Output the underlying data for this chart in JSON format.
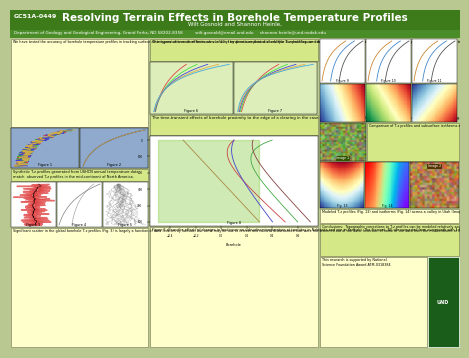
{
  "title": "Resolving Terrain Effects in Borehole Temperature Profiles",
  "title_id": "GC51A-0449",
  "authors": "Wilt Gosnold and Shannon Heinle,",
  "affiliation": "Department of Geology and Geological Engineering, Grand Forks, ND 58202-8358          wilt.gosnold@email.und.edu     shannon.heinle@und.nodak.edu",
  "header_bg": "#3d7a1a",
  "header_text": "#ffffff",
  "body_bg": "#b8c890",
  "panel_yellow": "#ffffcc",
  "panel_green": "#d4e888",
  "panel_plot": "#dde8cc",
  "body_text_color": "#000000",
  "left_col_text": "We have tested the accuracy of borehole temperature profiles in tracking surface air temperatures on short timescales (< 20 y) by direct comparison of multiple borehole logs and the meteorological record from nearby climate stations. We have conducted similar tests on long timescales (~100 y) by comparing synthetic borehole T-z profiles generated from climate data with measured T-z profiles. In both tests, we found that the borehole temperature profiles accurately record the surface air temperature record. Examples the long-term tests in which borehole sites show warming trends that parallel the meteorological record are shown below in the Figures 1 & 2. However, when we examined the global set of borehole data used for climate reconstructions, we found large scatter in the data with some borehole sites showing cooling where the meteorological record indicates warming. We suspected that because the data were not screened initially for terrain and cultural effects, a screening for these factors might yield a better data set. Subsequent examination of the location of the 130-sites in US segment of the global borehole data set by remote sensing, topo maps, and Google Earth indicates that at least 33 sites may have terrain effect disturbances to the T-z profiles. We have used remote sensing and thermal modeling of some of the sites to determine if corrections can be applied to the data.",
  "mid_top_text": "The types of terrain effects on surface temperature that disturb the T-z profiles we can discern from air photos, satellite imagery, topo maps, and historical records include: change in land cover, proximity to water bodies, and topography.",
  "mid_mid_text": "The time-transient effects of borehole proximity to the edge of a clearing in the case of clearing of old growth forest circa (Fig. 6) and regrowth of forest (Fig. 7) can be modeled. However, too much is unknown about the amount and timing of surface temperature change to permit precise corrections to borehole T-z profiles.",
  "fig8_text": "Figure 8 shows the effects of changes in land cover on subsurface temperature at two sites in Nebraska and one in Vermont. The Fremont, NE site converted from overgrowth with 1.6 m tall weeds to a heavily grazed pasture between 1961 and 1996. The Wayne, NE site experienced increasing tree shading during the same period. The Vermont site experienced cooling between 1986 and 1992, but the air temperature record shows warming. The T-z profile labeled Model shows the theoretical effect the air temperature should have had on the 1969 T-z profile in 1992. Surface temperature changes at the sites cannot be documented precisely enough to permit corrections to the borehole T-zs.",
  "right_top_text": "Comparison of T-z profiles and subsurface isotherms affected by proximity to a water body. The models are based on a site in Canada (Image 1). Fig. 9 shows the lake effect without climate change. Fig. 10 shows the effect of 2°C warming and Fig. 11 shows the effect of 2°C cooling. An appropriate profile from the model for no climate change could be used to correct the observed T-z profile.",
  "right_bot_text": "Modeled T-z profiles (Fig. 13) and isotherms (Fig. 14) across a valley in Utah (Image 2). The site is one of the US sites in the borehole database and has an obvious disturbance to the T-z profile.",
  "conclusions": "Conclusions:  Topographic corrections to T-z profiles can be modeled relatively accurately and are the most likely candidates for use in improving the borehole database. In all other situations, the amount and timing of surface temperature changes is insufficiently known to permit precise corrections.  Alternatively, a careful screening of the data and exclusion of potentially disturbed sites could improve the overall results.",
  "funding": "This research is supported by National\nScience Foundation Award ATM-0318384",
  "bottom_left_text": "Significant scatter in the global borehole T-z profiles (Fig. 3) is largely a function of data location by latitude, but some may be due to terrain and cultural disturbances that were not screened out of the data. Inversion of some of the data from the mid-continent of North America (Fig. 4), a region in which the data were screened, generates a relatively scattered, although consistent, set of results. Some early analyses of composite borehole T-z inversions with no screening for terrain effects yielded \"spaghetti\" plots as simulated in Fig. 5.",
  "synth_text": "Synthetic T-z profiles generated from USHCN annual temperature data\nmatch  observed T-z profiles in the mid-continent of North America."
}
